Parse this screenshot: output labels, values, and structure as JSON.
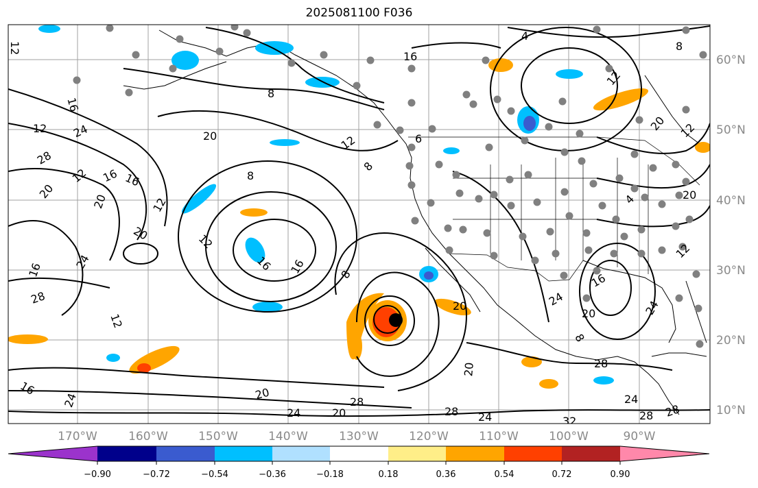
{
  "title": "2025081100 F036",
  "lat_labels": [
    "60°N",
    "50°N",
    "40°N",
    "30°N",
    "20°N",
    "10°N"
  ],
  "lon_labels": [
    "170°W",
    "160°W",
    "150°W",
    "140°W",
    "130°W",
    "120°W",
    "110°W",
    "100°W",
    "90°W"
  ],
  "colorbar": {
    "colors": [
      "#9b33cc",
      "#00008b",
      "#3a5bcf",
      "#00bfff",
      "#b0e0ff",
      "#ffffff",
      "#ffee88",
      "#ffa500",
      "#ff4000",
      "#b22222",
      "#ff88aa"
    ],
    "ticks": [
      "−0.90",
      "−0.72",
      "−0.54",
      "−0.36",
      "−0.18",
      "0.18",
      "0.36",
      "0.54",
      "0.72",
      "0.90"
    ]
  },
  "contour_labels": [
    "12",
    "16",
    "12",
    "24",
    "28",
    "20",
    "16",
    "12",
    "20",
    "8",
    "20",
    "12",
    "8",
    "16",
    "4",
    "8",
    "12",
    "20",
    "12",
    "16",
    "24",
    "12",
    "16",
    "20",
    "28",
    "20",
    "24",
    "20",
    "24",
    "12",
    "8",
    "20",
    "24",
    "28",
    "28",
    "20",
    "28",
    "24",
    "28",
    "32",
    "24",
    "28",
    "20",
    "16",
    "24",
    "16",
    "8",
    "12",
    "16",
    "6",
    "4",
    "8",
    "16",
    "12",
    "20"
  ],
  "storm_marker": "tropical-cyclone-center"
}
